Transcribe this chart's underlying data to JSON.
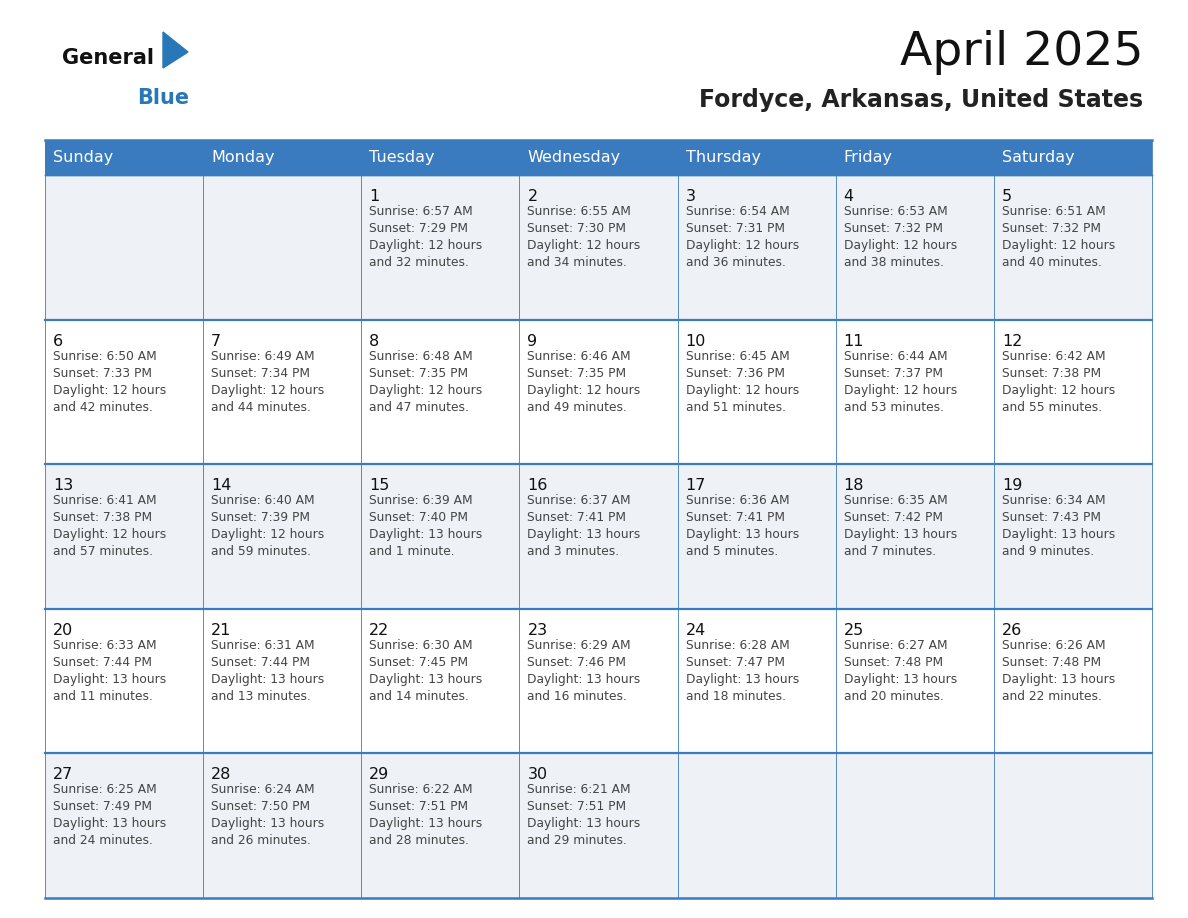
{
  "title": "April 2025",
  "subtitle": "Fordyce, Arkansas, United States",
  "days_of_week": [
    "Sunday",
    "Monday",
    "Tuesday",
    "Wednesday",
    "Thursday",
    "Friday",
    "Saturday"
  ],
  "header_bg": "#3a7bbf",
  "header_text": "#ffffff",
  "row_bg_odd": "#eef2f7",
  "row_bg_even": "#ffffff",
  "cell_border_color": "#3a7bbf",
  "text_color": "#444444",
  "day_num_color": "#111111",
  "title_color": "#111111",
  "subtitle_color": "#222222",
  "logo_general_color": "#111111",
  "logo_blue_color": "#2878b8",
  "weeks": [
    [
      {
        "date": "",
        "sunrise": "",
        "sunset": "",
        "daylight_line1": "",
        "daylight_line2": ""
      },
      {
        "date": "",
        "sunrise": "",
        "sunset": "",
        "daylight_line1": "",
        "daylight_line2": ""
      },
      {
        "date": "1",
        "sunrise": "6:57 AM",
        "sunset": "7:29 PM",
        "daylight_line1": "Daylight: 12 hours",
        "daylight_line2": "and 32 minutes."
      },
      {
        "date": "2",
        "sunrise": "6:55 AM",
        "sunset": "7:30 PM",
        "daylight_line1": "Daylight: 12 hours",
        "daylight_line2": "and 34 minutes."
      },
      {
        "date": "3",
        "sunrise": "6:54 AM",
        "sunset": "7:31 PM",
        "daylight_line1": "Daylight: 12 hours",
        "daylight_line2": "and 36 minutes."
      },
      {
        "date": "4",
        "sunrise": "6:53 AM",
        "sunset": "7:32 PM",
        "daylight_line1": "Daylight: 12 hours",
        "daylight_line2": "and 38 minutes."
      },
      {
        "date": "5",
        "sunrise": "6:51 AM",
        "sunset": "7:32 PM",
        "daylight_line1": "Daylight: 12 hours",
        "daylight_line2": "and 40 minutes."
      }
    ],
    [
      {
        "date": "6",
        "sunrise": "6:50 AM",
        "sunset": "7:33 PM",
        "daylight_line1": "Daylight: 12 hours",
        "daylight_line2": "and 42 minutes."
      },
      {
        "date": "7",
        "sunrise": "6:49 AM",
        "sunset": "7:34 PM",
        "daylight_line1": "Daylight: 12 hours",
        "daylight_line2": "and 44 minutes."
      },
      {
        "date": "8",
        "sunrise": "6:48 AM",
        "sunset": "7:35 PM",
        "daylight_line1": "Daylight: 12 hours",
        "daylight_line2": "and 47 minutes."
      },
      {
        "date": "9",
        "sunrise": "6:46 AM",
        "sunset": "7:35 PM",
        "daylight_line1": "Daylight: 12 hours",
        "daylight_line2": "and 49 minutes."
      },
      {
        "date": "10",
        "sunrise": "6:45 AM",
        "sunset": "7:36 PM",
        "daylight_line1": "Daylight: 12 hours",
        "daylight_line2": "and 51 minutes."
      },
      {
        "date": "11",
        "sunrise": "6:44 AM",
        "sunset": "7:37 PM",
        "daylight_line1": "Daylight: 12 hours",
        "daylight_line2": "and 53 minutes."
      },
      {
        "date": "12",
        "sunrise": "6:42 AM",
        "sunset": "7:38 PM",
        "daylight_line1": "Daylight: 12 hours",
        "daylight_line2": "and 55 minutes."
      }
    ],
    [
      {
        "date": "13",
        "sunrise": "6:41 AM",
        "sunset": "7:38 PM",
        "daylight_line1": "Daylight: 12 hours",
        "daylight_line2": "and 57 minutes."
      },
      {
        "date": "14",
        "sunrise": "6:40 AM",
        "sunset": "7:39 PM",
        "daylight_line1": "Daylight: 12 hours",
        "daylight_line2": "and 59 minutes."
      },
      {
        "date": "15",
        "sunrise": "6:39 AM",
        "sunset": "7:40 PM",
        "daylight_line1": "Daylight: 13 hours",
        "daylight_line2": "and 1 minute."
      },
      {
        "date": "16",
        "sunrise": "6:37 AM",
        "sunset": "7:41 PM",
        "daylight_line1": "Daylight: 13 hours",
        "daylight_line2": "and 3 minutes."
      },
      {
        "date": "17",
        "sunrise": "6:36 AM",
        "sunset": "7:41 PM",
        "daylight_line1": "Daylight: 13 hours",
        "daylight_line2": "and 5 minutes."
      },
      {
        "date": "18",
        "sunrise": "6:35 AM",
        "sunset": "7:42 PM",
        "daylight_line1": "Daylight: 13 hours",
        "daylight_line2": "and 7 minutes."
      },
      {
        "date": "19",
        "sunrise": "6:34 AM",
        "sunset": "7:43 PM",
        "daylight_line1": "Daylight: 13 hours",
        "daylight_line2": "and 9 minutes."
      }
    ],
    [
      {
        "date": "20",
        "sunrise": "6:33 AM",
        "sunset": "7:44 PM",
        "daylight_line1": "Daylight: 13 hours",
        "daylight_line2": "and 11 minutes."
      },
      {
        "date": "21",
        "sunrise": "6:31 AM",
        "sunset": "7:44 PM",
        "daylight_line1": "Daylight: 13 hours",
        "daylight_line2": "and 13 minutes."
      },
      {
        "date": "22",
        "sunrise": "6:30 AM",
        "sunset": "7:45 PM",
        "daylight_line1": "Daylight: 13 hours",
        "daylight_line2": "and 14 minutes."
      },
      {
        "date": "23",
        "sunrise": "6:29 AM",
        "sunset": "7:46 PM",
        "daylight_line1": "Daylight: 13 hours",
        "daylight_line2": "and 16 minutes."
      },
      {
        "date": "24",
        "sunrise": "6:28 AM",
        "sunset": "7:47 PM",
        "daylight_line1": "Daylight: 13 hours",
        "daylight_line2": "and 18 minutes."
      },
      {
        "date": "25",
        "sunrise": "6:27 AM",
        "sunset": "7:48 PM",
        "daylight_line1": "Daylight: 13 hours",
        "daylight_line2": "and 20 minutes."
      },
      {
        "date": "26",
        "sunrise": "6:26 AM",
        "sunset": "7:48 PM",
        "daylight_line1": "Daylight: 13 hours",
        "daylight_line2": "and 22 minutes."
      }
    ],
    [
      {
        "date": "27",
        "sunrise": "6:25 AM",
        "sunset": "7:49 PM",
        "daylight_line1": "Daylight: 13 hours",
        "daylight_line2": "and 24 minutes."
      },
      {
        "date": "28",
        "sunrise": "6:24 AM",
        "sunset": "7:50 PM",
        "daylight_line1": "Daylight: 13 hours",
        "daylight_line2": "and 26 minutes."
      },
      {
        "date": "29",
        "sunrise": "6:22 AM",
        "sunset": "7:51 PM",
        "daylight_line1": "Daylight: 13 hours",
        "daylight_line2": "and 28 minutes."
      },
      {
        "date": "30",
        "sunrise": "6:21 AM",
        "sunset": "7:51 PM",
        "daylight_line1": "Daylight: 13 hours",
        "daylight_line2": "and 29 minutes."
      },
      {
        "date": "",
        "sunrise": "",
        "sunset": "",
        "daylight_line1": "",
        "daylight_line2": ""
      },
      {
        "date": "",
        "sunrise": "",
        "sunset": "",
        "daylight_line1": "",
        "daylight_line2": ""
      },
      {
        "date": "",
        "sunrise": "",
        "sunset": "",
        "daylight_line1": "",
        "daylight_line2": ""
      }
    ]
  ]
}
